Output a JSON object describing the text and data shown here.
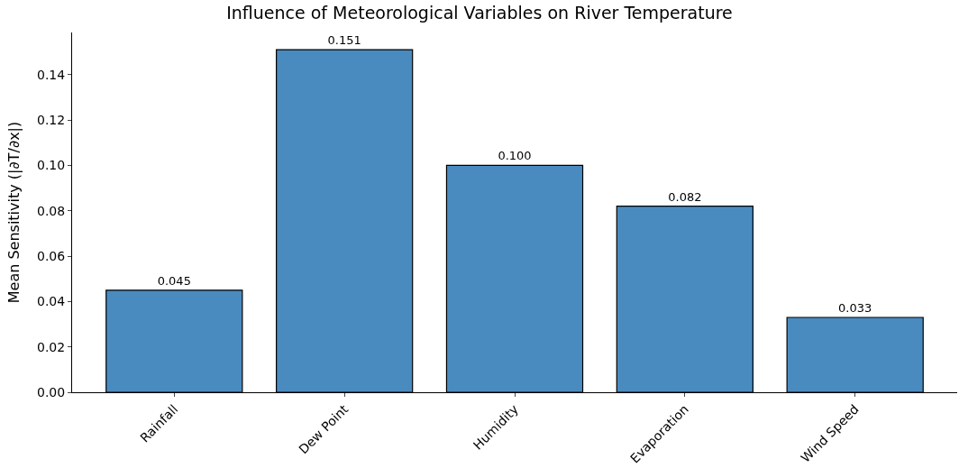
{
  "chart_data": {
    "type": "bar",
    "title": "Influence of Meteorological Variables on River Temperature",
    "ylabel": "Mean Sensitivity (|∂T/∂x|)",
    "categories": [
      "Rainfall",
      "Dew Point",
      "Humidity",
      "Evaporation",
      "Wind Speed"
    ],
    "values": [
      0.045,
      0.151,
      0.1,
      0.082,
      0.033
    ],
    "value_labels": [
      "0.045",
      "0.151",
      "0.100",
      "0.082",
      "0.033"
    ],
    "color": "#4a8bbf",
    "ylim": [
      0,
      0.1586
    ],
    "yticks": [
      {
        "value": 0,
        "label": "0.00"
      },
      {
        "value": 0.02,
        "label": "0.02"
      },
      {
        "value": 0.04,
        "label": "0.04"
      },
      {
        "value": 0.06,
        "label": "0.06"
      },
      {
        "value": 0.08,
        "label": "0.08"
      },
      {
        "value": 0.1,
        "label": "0.10"
      },
      {
        "value": 0.12,
        "label": "0.12"
      },
      {
        "value": 0.14,
        "label": "0.14"
      }
    ]
  }
}
